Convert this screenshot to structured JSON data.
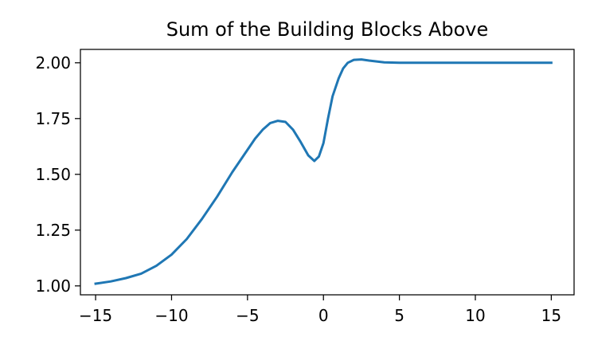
{
  "chart_data": {
    "type": "line",
    "title": "Sum of the Building Blocks Above",
    "xlabel": "",
    "ylabel": "",
    "xlim": [
      -16,
      16.5
    ],
    "ylim": [
      0.96,
      2.06
    ],
    "grid": false,
    "x_ticks": [
      {
        "value": -15,
        "label": "−15"
      },
      {
        "value": -10,
        "label": "−10"
      },
      {
        "value": -5,
        "label": "−5"
      },
      {
        "value": 0,
        "label": "0"
      },
      {
        "value": 5,
        "label": "5"
      },
      {
        "value": 10,
        "label": "10"
      },
      {
        "value": 15,
        "label": "15"
      }
    ],
    "y_ticks": [
      {
        "value": 1.0,
        "label": "1.00"
      },
      {
        "value": 1.25,
        "label": "1.25"
      },
      {
        "value": 1.5,
        "label": "1.50"
      },
      {
        "value": 1.75,
        "label": "1.75"
      },
      {
        "value": 2.0,
        "label": "2.00"
      }
    ],
    "series": [
      {
        "color": "#1f77b4",
        "x": [
          -15,
          -14,
          -13,
          -12,
          -11,
          -10,
          -9,
          -8,
          -7,
          -6,
          -5,
          -4.5,
          -4,
          -3.5,
          -3,
          -2.5,
          -2,
          -1.5,
          -1,
          -0.6,
          -0.3,
          0,
          0.3,
          0.6,
          1,
          1.3,
          1.6,
          2,
          2.5,
          3,
          4,
          5,
          7,
          10,
          15
        ],
        "y": [
          1.01,
          1.02,
          1.035,
          1.055,
          1.09,
          1.14,
          1.21,
          1.3,
          1.4,
          1.51,
          1.61,
          1.66,
          1.7,
          1.73,
          1.74,
          1.735,
          1.7,
          1.645,
          1.585,
          1.56,
          1.58,
          1.64,
          1.75,
          1.85,
          1.93,
          1.975,
          2.0,
          2.013,
          2.015,
          2.01,
          2.002,
          2.0,
          2.0,
          2.0,
          2.0
        ]
      }
    ]
  }
}
